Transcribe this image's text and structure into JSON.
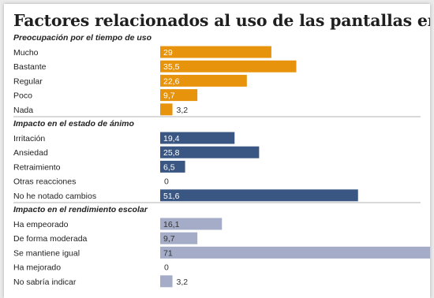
{
  "title": "Factores relacionados al uso de las pantallas en Galicia",
  "colors": {
    "orange": "#e8930c",
    "blue": "#3a5784",
    "gray": "#a4acc7",
    "divider": "#9a9a9a"
  },
  "chart_data": {
    "type": "bar",
    "orientation": "horizontal",
    "xlim": [
      0,
      71
    ],
    "grid": false,
    "groups": [
      {
        "title": "Preocupación por el tiempo de uso",
        "color": "#e8930c",
        "label_color": "#ffffff",
        "categories": [
          "Mucho",
          "Bastante",
          "Regular",
          "Poco",
          "Nada"
        ],
        "values": [
          29,
          35.5,
          22.6,
          9.7,
          3.2
        ],
        "labels": [
          "29",
          "35,5",
          "22,6",
          "9,7",
          "3,2"
        ]
      },
      {
        "title": "Impacto en el estado de ánimo",
        "color": "#3a5784",
        "label_color": "#ffffff",
        "categories": [
          "Irritación",
          "Ansiedad",
          "Retraimiento",
          "Otras reacciones",
          "No he notado cambios"
        ],
        "values": [
          19.4,
          25.8,
          6.5,
          0,
          51.6
        ],
        "labels": [
          "19,4",
          "25,8",
          "6,5",
          "0",
          "51,6"
        ]
      },
      {
        "title": "Impacto en el rendimiento escolar",
        "color": "#a4acc7",
        "label_color": "#333333",
        "categories": [
          "Ha empeorado",
          "De forma moderada",
          "Se mantiene igual",
          "Ha mejorado",
          "No sabría indicar"
        ],
        "values": [
          16.1,
          9.7,
          71,
          0,
          3.2
        ],
        "labels": [
          "16,1",
          "9,7",
          "71",
          "0",
          "3,2"
        ]
      }
    ]
  }
}
